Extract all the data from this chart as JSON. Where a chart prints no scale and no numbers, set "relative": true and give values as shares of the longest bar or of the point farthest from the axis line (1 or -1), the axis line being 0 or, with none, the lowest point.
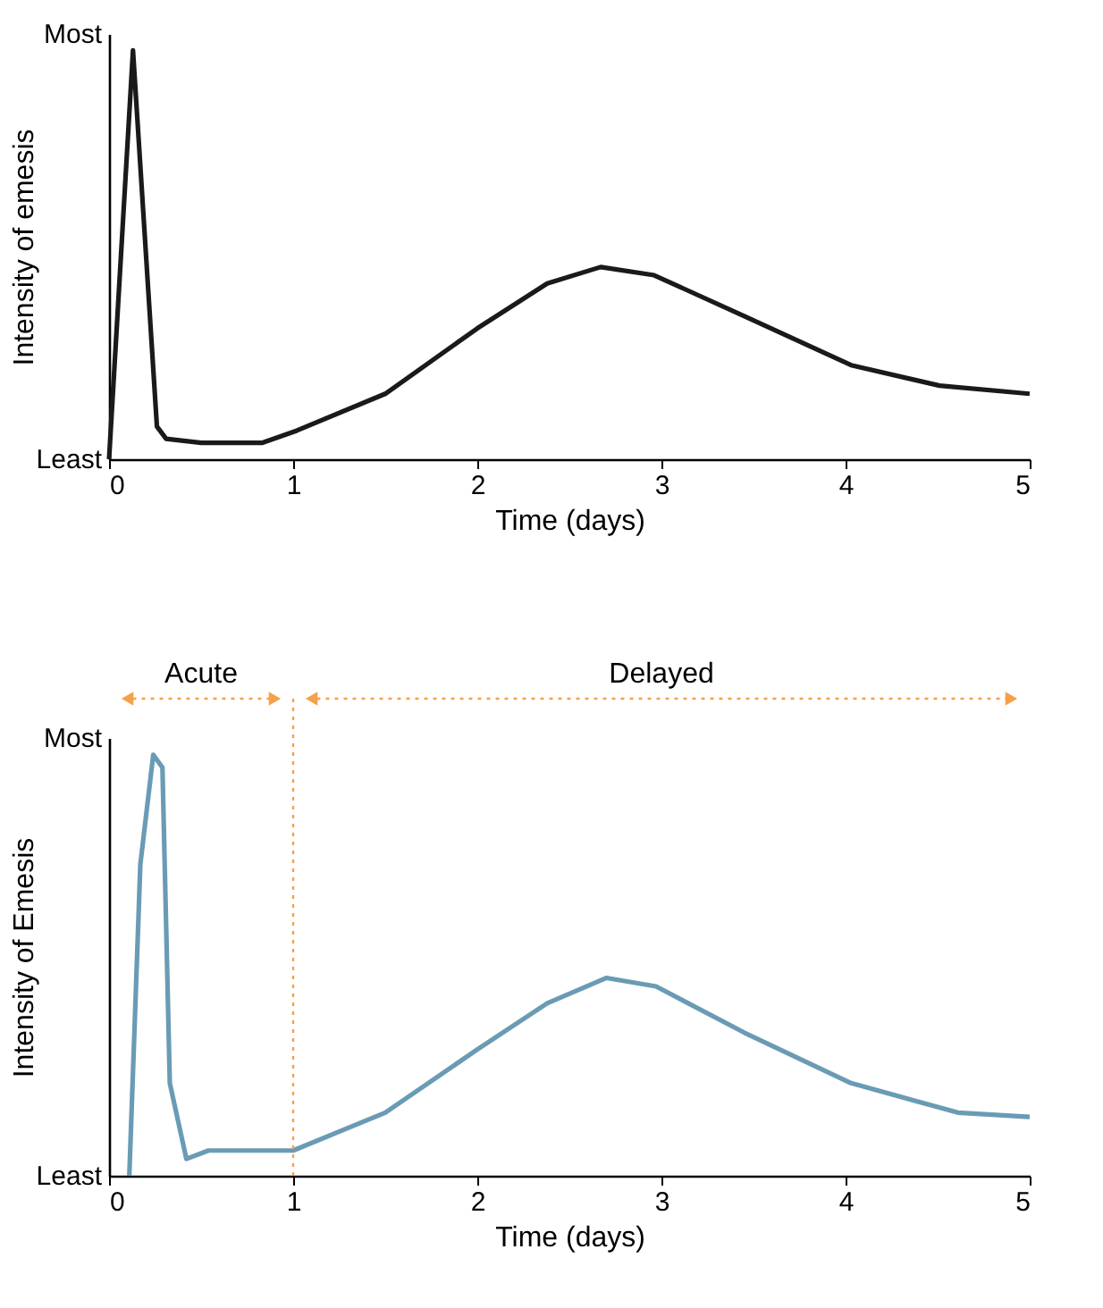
{
  "chart_data": [
    {
      "type": "line",
      "relative": true,
      "xlabel": "Time (days)",
      "ylabel": "Intensity of emesis",
      "xlim": [
        0,
        5
      ],
      "xticks": [
        0,
        1,
        2,
        3,
        4,
        5
      ],
      "grid": false,
      "marker": "none",
      "line_style": "solid",
      "annotations": [
        "Least",
        "Most"
      ],
      "series": [
        {
          "color": "#1a1a1a",
          "x": [
            0,
            0.13,
            0.26,
            0.31,
            0.5,
            0.83,
            1.02,
            1.5,
            2.0,
            2.38,
            2.67,
            2.96,
            3.45,
            4.03,
            4.51,
            5.0
          ],
          "values": [
            0,
            1,
            0.08,
            0.05,
            0.04,
            0.04,
            0.07,
            0.16,
            0.32,
            0.43,
            0.47,
            0.45,
            0.35,
            0.23,
            0.18,
            0.16
          ]
        }
      ]
    },
    {
      "type": "line",
      "relative": true,
      "xlabel": "Time (days)",
      "ylabel": "Intensity of Emesis",
      "xlim": [
        0,
        5
      ],
      "xticks": [
        0,
        1,
        2,
        3,
        4,
        5
      ],
      "grid": false,
      "marker": "none",
      "line_style": "solid",
      "annotations": [
        "Least",
        "Most",
        "Acute",
        "Delayed"
      ],
      "series": [
        {
          "color": "#6a9bb5",
          "x": [
            0.11,
            0.17,
            0.24,
            0.29,
            0.33,
            0.42,
            0.54,
            1.0,
            1.5,
            2.0,
            2.38,
            2.7,
            2.97,
            3.45,
            4.03,
            4.61,
            5.0
          ],
          "values": [
            0,
            0.74,
            1,
            0.97,
            0.22,
            0.04,
            0.06,
            0.06,
            0.15,
            0.3,
            0.41,
            0.47,
            0.45,
            0.34,
            0.22,
            0.15,
            0.14
          ]
        }
      ],
      "ref_lines": [
        {
          "axis": "x",
          "value": 1,
          "color": "#f5a04a",
          "line_style": "dotted"
        }
      ]
    }
  ]
}
